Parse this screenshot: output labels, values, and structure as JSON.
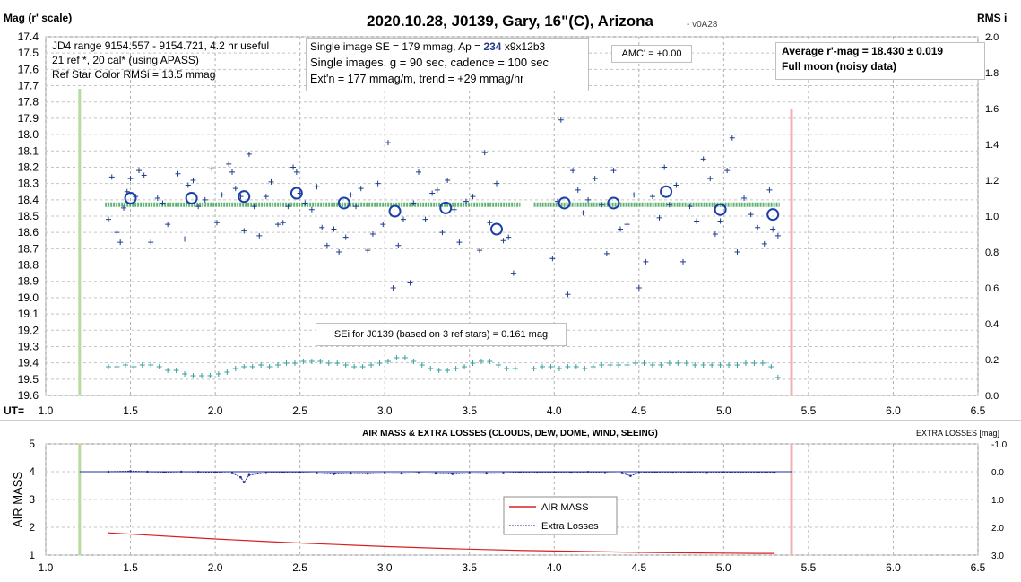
{
  "top_chart": {
    "title": "2020.10.28, J0139, Gary, 16\"(C), Arizona",
    "version": "- v0A28",
    "y_left_label": "Mag (r' scale)",
    "y_right_label": "RMS i",
    "x_label": "UT=",
    "y_ticks": [
      "17.4",
      "17.5",
      "17.6",
      "17.7",
      "17.8",
      "17.9",
      "18.0",
      "18.1",
      "18.2",
      "18.3",
      "18.4",
      "18.5",
      "18.6",
      "18.7",
      "18.8",
      "18.9",
      "19.0",
      "19.1",
      "19.2",
      "19.3",
      "19.4",
      "19.5",
      "19.6"
    ],
    "y_right_ticks": [
      "2.0",
      "1.8",
      "1.6",
      "1.4",
      "1.2",
      "1.0",
      "0.8",
      "0.6",
      "0.4",
      "0.2",
      "0.0"
    ],
    "x_ticks": [
      "1.0",
      "1.5",
      "2.0",
      "2.5",
      "3.0",
      "3.5",
      "4.0",
      "4.5",
      "5.0",
      "5.5",
      "6.0",
      "6.5"
    ],
    "annotations": {
      "box1_line1": "JD4 range 9154.557 - 9154.721, 4.2 hr useful",
      "box1_line2": "21 ref *, 20 cal* (using APASS)",
      "box1_line3": "Ref Star Color RMSi = 13.5 mmag",
      "box2_line1a": "Single image SE = 179 mmag, Ap = ",
      "box2_line1b": "234",
      "box2_line1c": " x9x12b3",
      "box2_line2": "Single images, g = 90 sec, cadence = 100 sec",
      "box2_line3": "Ext'n = 177 mmag/m, trend = +29 mmag/hr",
      "box3": "AMC' = +0.00",
      "box4_line1": "Average r'-mag =  18.430 ± 0.019",
      "box4_line2": "Full moon (noisy data)",
      "box5": "SEi for J0139 (based on 3 ref stars) = 0.161 mag"
    }
  },
  "bottom_chart": {
    "title": "AIR MASS & EXTRA LOSSES (CLOUDS, DEW, DOME, WIND, SEEING)",
    "y_left_label": "AIR MASS",
    "y_right_label": "EXTRA LOSSES [mag]",
    "y_ticks": [
      "5",
      "4",
      "3",
      "2",
      "1"
    ],
    "y_right_ticks": [
      "-1.0",
      "0.0",
      "1.0",
      "2.0",
      "3.0"
    ],
    "x_ticks": [
      "1.0",
      "1.5",
      "2.0",
      "2.5",
      "3.0",
      "3.5",
      "4.0",
      "4.5",
      "5.0",
      "5.5",
      "6.0",
      "6.5"
    ],
    "legend": [
      "AIR MASS",
      "Extra Losses"
    ]
  },
  "colors": {
    "points": "#1f3d8c",
    "average": "#2e9a45",
    "rms": "#3aa0a0",
    "airmass": "#d62020",
    "extra": "#1f2f9c",
    "start_line": "#b8dca0",
    "end_line": "#f2b0b0"
  },
  "chart_data": [
    {
      "type": "scatter",
      "title": "2020.10.28, J0139, Gary, 16\"(C), Arizona",
      "xlabel": "UT",
      "ylabel": "Mag (r' scale)",
      "y2label": "RMS i",
      "xlim": [
        1.0,
        6.5
      ],
      "ylim": [
        17.4,
        19.6
      ],
      "y_inverted": true,
      "y2lim": [
        0.0,
        2.0
      ],
      "grid": true,
      "session_start_ut": 1.2,
      "session_end_ut": 5.4,
      "average_mag": 18.43,
      "average_mag_err": 0.019,
      "series": [
        {
          "name": "single images",
          "marker": "plus",
          "x": [
            1.37,
            1.39,
            1.42,
            1.44,
            1.46,
            1.48,
            1.5,
            1.53,
            1.55,
            1.58,
            1.62,
            1.66,
            1.69,
            1.72,
            1.78,
            1.82,
            1.84,
            1.87,
            1.9,
            1.94,
            1.98,
            2.01,
            2.04,
            2.08,
            2.1,
            2.12,
            2.15,
            2.17,
            2.2,
            2.23,
            2.26,
            2.3,
            2.33,
            2.37,
            2.4,
            2.43,
            2.46,
            2.48,
            2.5,
            2.53,
            2.57,
            2.6,
            2.63,
            2.66,
            2.7,
            2.73,
            2.77,
            2.8,
            2.83,
            2.86,
            2.9,
            2.93,
            2.96,
            2.99,
            3.02,
            3.05,
            3.08,
            3.11,
            3.15,
            3.17,
            3.2,
            3.24,
            3.28,
            3.31,
            3.34,
            3.37,
            3.41,
            3.44,
            3.48,
            3.52,
            3.56,
            3.59,
            3.62,
            3.66,
            3.7,
            3.73,
            3.76,
            3.99,
            4.02,
            4.04,
            4.08,
            4.11,
            4.14,
            4.17,
            4.2,
            4.24,
            4.28,
            4.31,
            4.35,
            4.39,
            4.43,
            4.47,
            4.5,
            4.54,
            4.58,
            4.62,
            4.65,
            4.68,
            4.72,
            4.76,
            4.8,
            4.84,
            4.88,
            4.92,
            4.95,
            4.98,
            5.02,
            5.05,
            5.08,
            5.12,
            5.16,
            5.2,
            5.24,
            5.27,
            5.29,
            5.32
          ],
          "y": [
            18.52,
            18.26,
            18.6,
            18.66,
            18.45,
            18.35,
            18.27,
            18.38,
            18.22,
            18.25,
            18.66,
            18.39,
            18.42,
            18.55,
            18.24,
            18.64,
            18.31,
            18.28,
            18.44,
            18.4,
            18.21,
            18.54,
            18.37,
            18.18,
            18.23,
            18.33,
            18.38,
            18.59,
            18.12,
            18.44,
            18.62,
            18.38,
            18.29,
            18.55,
            18.54,
            18.44,
            18.2,
            18.23,
            18.36,
            18.42,
            18.46,
            18.32,
            18.57,
            18.68,
            18.58,
            18.72,
            18.63,
            18.37,
            18.44,
            18.33,
            18.71,
            18.61,
            18.3,
            18.55,
            18.05,
            18.94,
            18.68,
            18.52,
            18.91,
            18.42,
            18.23,
            18.52,
            18.36,
            18.34,
            18.6,
            18.28,
            18.46,
            18.66,
            18.41,
            18.38,
            18.71,
            18.11,
            18.54,
            18.3,
            18.65,
            18.63,
            18.85,
            18.76,
            18.41,
            17.91,
            18.98,
            18.22,
            18.34,
            18.48,
            18.4,
            18.27,
            18.43,
            18.73,
            18.22,
            18.58,
            18.55,
            18.37,
            18.94,
            18.78,
            18.38,
            18.51,
            18.2,
            18.43,
            18.31,
            18.78,
            18.44,
            18.53,
            18.15,
            18.27,
            18.61,
            18.53,
            18.22,
            18.02,
            18.72,
            18.39,
            18.49,
            18.57,
            18.67,
            18.34,
            18.58,
            18.62
          ]
        },
        {
          "name": "binned averages",
          "marker": "circle",
          "x": [
            1.5,
            1.86,
            2.17,
            2.48,
            2.76,
            3.06,
            3.36,
            3.66,
            4.06,
            4.35,
            4.66,
            4.98,
            5.29
          ],
          "y": [
            18.39,
            18.39,
            18.38,
            18.36,
            18.42,
            18.47,
            18.45,
            18.58,
            18.42,
            18.42,
            18.35,
            18.46,
            18.49
          ]
        },
        {
          "name": "RMS i",
          "axis": "right",
          "marker": "plus",
          "x": [
            1.37,
            1.42,
            1.47,
            1.52,
            1.57,
            1.62,
            1.67,
            1.72,
            1.77,
            1.82,
            1.87,
            1.92,
            1.97,
            2.02,
            2.07,
            2.12,
            2.17,
            2.22,
            2.27,
            2.32,
            2.37,
            2.42,
            2.47,
            2.52,
            2.57,
            2.62,
            2.67,
            2.72,
            2.77,
            2.82,
            2.87,
            2.92,
            2.97,
            3.02,
            3.07,
            3.12,
            3.17,
            3.22,
            3.27,
            3.32,
            3.37,
            3.42,
            3.47,
            3.52,
            3.57,
            3.62,
            3.67,
            3.72,
            3.77,
            3.88,
            3.93,
            3.98,
            4.03,
            4.08,
            4.13,
            4.18,
            4.23,
            4.28,
            4.33,
            4.38,
            4.43,
            4.48,
            4.53,
            4.58,
            4.63,
            4.68,
            4.73,
            4.78,
            4.83,
            4.88,
            4.93,
            4.98,
            5.03,
            5.08,
            5.13,
            5.18,
            5.23,
            5.28,
            5.32
          ],
          "y": [
            0.16,
            0.16,
            0.17,
            0.16,
            0.17,
            0.17,
            0.16,
            0.14,
            0.14,
            0.12,
            0.11,
            0.11,
            0.11,
            0.12,
            0.13,
            0.15,
            0.16,
            0.16,
            0.17,
            0.16,
            0.17,
            0.18,
            0.18,
            0.19,
            0.19,
            0.19,
            0.18,
            0.18,
            0.17,
            0.16,
            0.16,
            0.17,
            0.18,
            0.19,
            0.21,
            0.21,
            0.19,
            0.17,
            0.15,
            0.14,
            0.14,
            0.15,
            0.16,
            0.18,
            0.19,
            0.19,
            0.17,
            0.15,
            0.15,
            0.15,
            0.16,
            0.16,
            0.15,
            0.16,
            0.16,
            0.15,
            0.16,
            0.17,
            0.17,
            0.17,
            0.17,
            0.18,
            0.18,
            0.17,
            0.17,
            0.18,
            0.18,
            0.18,
            0.17,
            0.17,
            0.17,
            0.17,
            0.17,
            0.17,
            0.18,
            0.18,
            0.18,
            0.16,
            0.1
          ]
        }
      ]
    },
    {
      "type": "line",
      "title": "AIR MASS & EXTRA LOSSES (CLOUDS, DEW, DOME, WIND, SEEING)",
      "xlabel": "UT",
      "ylabel": "AIR MASS",
      "y2label": "EXTRA LOSSES [mag]",
      "xlim": [
        1.0,
        6.5
      ],
      "ylim": [
        1,
        5
      ],
      "y2lim": [
        -1.0,
        3.0
      ],
      "y2_inverted": true,
      "grid": true,
      "legend": "center",
      "series": [
        {
          "name": "AIR MASS",
          "x": [
            1.37,
            1.6,
            1.8,
            2.0,
            2.2,
            2.4,
            2.6,
            2.8,
            3.0,
            3.2,
            3.4,
            3.6,
            3.8,
            4.0,
            4.2,
            4.4,
            4.6,
            4.8,
            5.0,
            5.2,
            5.3
          ],
          "y": [
            1.8,
            1.72,
            1.65,
            1.58,
            1.52,
            1.46,
            1.41,
            1.36,
            1.31,
            1.27,
            1.23,
            1.2,
            1.17,
            1.15,
            1.13,
            1.11,
            1.09,
            1.08,
            1.07,
            1.06,
            1.06
          ]
        },
        {
          "name": "Extra Losses",
          "axis": "right",
          "x": [
            1.37,
            1.5,
            1.6,
            1.7,
            1.8,
            1.9,
            2.0,
            2.1,
            2.15,
            2.17,
            2.2,
            2.3,
            2.4,
            2.5,
            2.6,
            2.7,
            2.8,
            2.9,
            3.0,
            3.1,
            3.2,
            3.3,
            3.4,
            3.5,
            3.6,
            3.7,
            3.8,
            3.9,
            4.0,
            4.1,
            4.2,
            4.3,
            4.4,
            4.45,
            4.5,
            4.6,
            4.7,
            4.8,
            4.9,
            5.0,
            5.1,
            5.2,
            5.3
          ],
          "y": [
            0.0,
            -0.02,
            0.0,
            0.02,
            0.0,
            0.01,
            0.03,
            0.05,
            0.2,
            0.38,
            0.12,
            0.04,
            0.02,
            0.03,
            0.05,
            0.08,
            0.06,
            0.07,
            0.05,
            0.06,
            0.04,
            0.06,
            0.08,
            0.05,
            0.06,
            0.05,
            0.02,
            0.03,
            0.02,
            0.03,
            0.01,
            0.04,
            0.05,
            0.15,
            0.04,
            0.02,
            0.03,
            0.02,
            0.04,
            0.02,
            0.03,
            0.02,
            0.03
          ]
        }
      ]
    }
  ]
}
